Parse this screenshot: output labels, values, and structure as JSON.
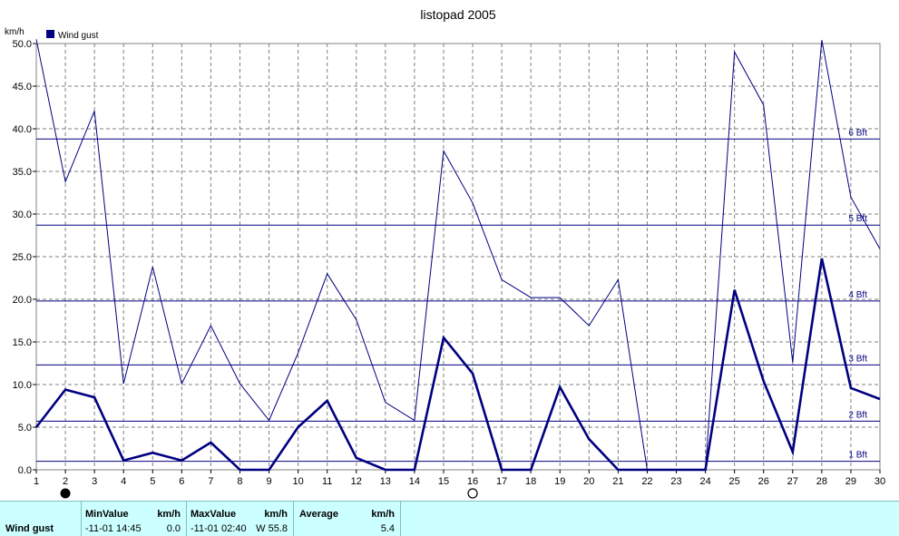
{
  "chart_data": {
    "type": "line",
    "title": "listopad 2005",
    "ylabel": "km/h",
    "xlabel": "",
    "xlim": [
      1,
      30
    ],
    "ylim": [
      0,
      50
    ],
    "x_ticks": [
      1,
      2,
      3,
      4,
      5,
      6,
      7,
      8,
      9,
      10,
      11,
      12,
      13,
      14,
      15,
      16,
      17,
      18,
      19,
      20,
      21,
      22,
      23,
      24,
      25,
      26,
      27,
      28,
      29,
      30
    ],
    "y_ticks": [
      "0.0",
      "5.0",
      "10.0",
      "15.0",
      "20.0",
      "25.0",
      "30.0",
      "35.0",
      "40.0",
      "45.0",
      "50.0"
    ],
    "grid": true,
    "legend": {
      "placement": "top-left",
      "entries": [
        "Wind gust"
      ]
    },
    "series": [
      {
        "name": "Wind gust",
        "style": "thin",
        "color": "#000080",
        "x": [
          1,
          2,
          3,
          4,
          5,
          6,
          7,
          8,
          9,
          10,
          11,
          12,
          13,
          14,
          15,
          16,
          17,
          18,
          19,
          20,
          21,
          22,
          23,
          24,
          25,
          26,
          27,
          28,
          29,
          30
        ],
        "values": [
          50.5,
          33.8,
          42.1,
          10.1,
          23.8,
          10.1,
          16.9,
          10.1,
          5.8,
          13.7,
          23.0,
          17.6,
          7.9,
          5.8,
          37.4,
          31.3,
          22.3,
          20.2,
          20.2,
          16.9,
          22.3,
          0,
          0,
          0,
          49.0,
          42.8,
          12.6,
          50.4,
          32.0,
          25.9
        ]
      },
      {
        "name": "Wind gust",
        "style": "thick",
        "color": "#000080",
        "x": [
          1,
          2,
          3,
          4,
          5,
          6,
          7,
          8,
          9,
          10,
          11,
          12,
          13,
          14,
          15,
          16,
          17,
          18,
          19,
          20,
          21,
          22,
          23,
          24,
          25,
          26,
          27,
          28,
          29,
          30
        ],
        "values": [
          5.0,
          9.4,
          8.5,
          1.1,
          2.0,
          1.1,
          3.2,
          0,
          0,
          5.0,
          8.1,
          1.4,
          0,
          0,
          15.5,
          11.3,
          0,
          0,
          9.7,
          3.6,
          0,
          0,
          0,
          0,
          21.1,
          10.4,
          2.1,
          24.8,
          9.6,
          8.3
        ]
      }
    ],
    "reference_lines": [
      {
        "label": "1 Bft",
        "value": 1.0
      },
      {
        "label": "2 Bft",
        "value": 5.7
      },
      {
        "label": "3 Bft",
        "value": 12.3
      },
      {
        "label": "4 Bft",
        "value": 19.8
      },
      {
        "label": "5 Bft",
        "value": 28.7
      },
      {
        "label": "6 Bft",
        "value": 38.8
      }
    ],
    "moon_phases": [
      {
        "day": 2,
        "phase": "new-moon"
      },
      {
        "day": 16,
        "phase": "full-moon"
      }
    ]
  },
  "stats": {
    "row_label": "Wind gust",
    "min_header": "MinValue",
    "min_unit": "km/h",
    "min_time": "-11-01  14:45",
    "min_value": "0.0",
    "max_header": "MaxValue",
    "max_unit": "km/h",
    "max_time": "-11-01  02:40",
    "max_value": "W 55.8",
    "avg_header": "Average",
    "avg_unit": "km/h",
    "avg_value": "5.4"
  }
}
